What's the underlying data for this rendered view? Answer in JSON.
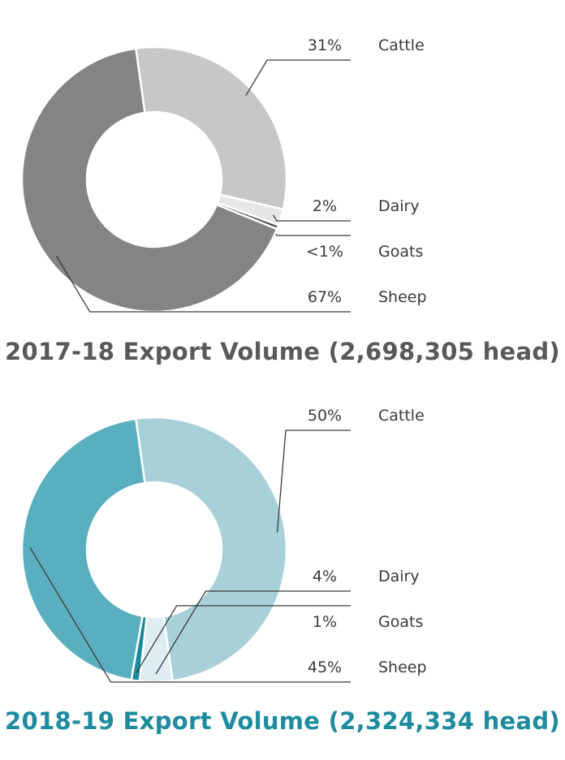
{
  "chart_data": [
    {
      "type": "pie",
      "title": "2017-18 Export Volume (2,698,305 head)",
      "categories": [
        "Cattle",
        "Dairy",
        "Goats",
        "Sheep"
      ],
      "values": [
        31,
        2,
        0.5,
        67
      ],
      "value_labels": [
        "31%",
        "2%",
        "<1%",
        "67%"
      ],
      "colors": [
        "#c6c7c9",
        "#e6e7e8",
        "#4d4d4f",
        "#838486"
      ],
      "title_color": "#58595b",
      "donut": true,
      "legend": "right"
    },
    {
      "type": "pie",
      "title": "2018-19 Export Volume (2,324,334 head)",
      "categories": [
        "Cattle",
        "Dairy",
        "Goats",
        "Sheep"
      ],
      "values": [
        50,
        4,
        1,
        45
      ],
      "value_labels": [
        "50%",
        "4%",
        "1%",
        "45%"
      ],
      "colors": [
        "#a8d0d8",
        "#deedf1",
        "#1a8a9c",
        "#5aafbf"
      ],
      "title_color": "#1e8b9e",
      "donut": true,
      "legend": "right"
    }
  ]
}
